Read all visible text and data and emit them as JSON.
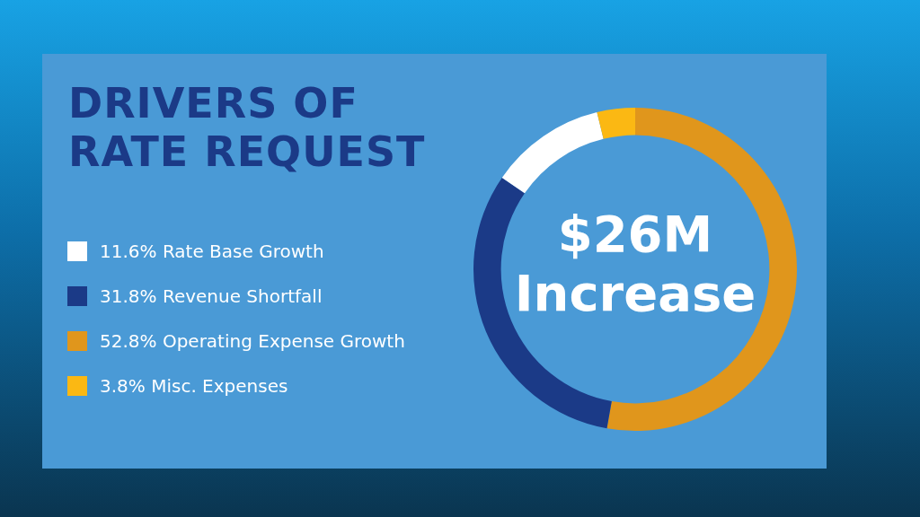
{
  "chart_data": {
    "type": "donut",
    "title": "DRIVERS OF RATE REQUEST",
    "categories": [
      "Rate Base Growth",
      "Revenue Shortfall",
      "Operating Expense Growth",
      "Misc. Expenses"
    ],
    "values": [
      11.6,
      31.8,
      52.8,
      3.8
    ],
    "value_labels": [
      "11.6%",
      "31.8%",
      "52.8%",
      "3.8%"
    ],
    "colors": [
      "#ffffff",
      "#1b3a87",
      "#e0961c",
      "#fbb813"
    ],
    "annotations": [
      "$26M Increase"
    ],
    "legend": "left"
  }
}
